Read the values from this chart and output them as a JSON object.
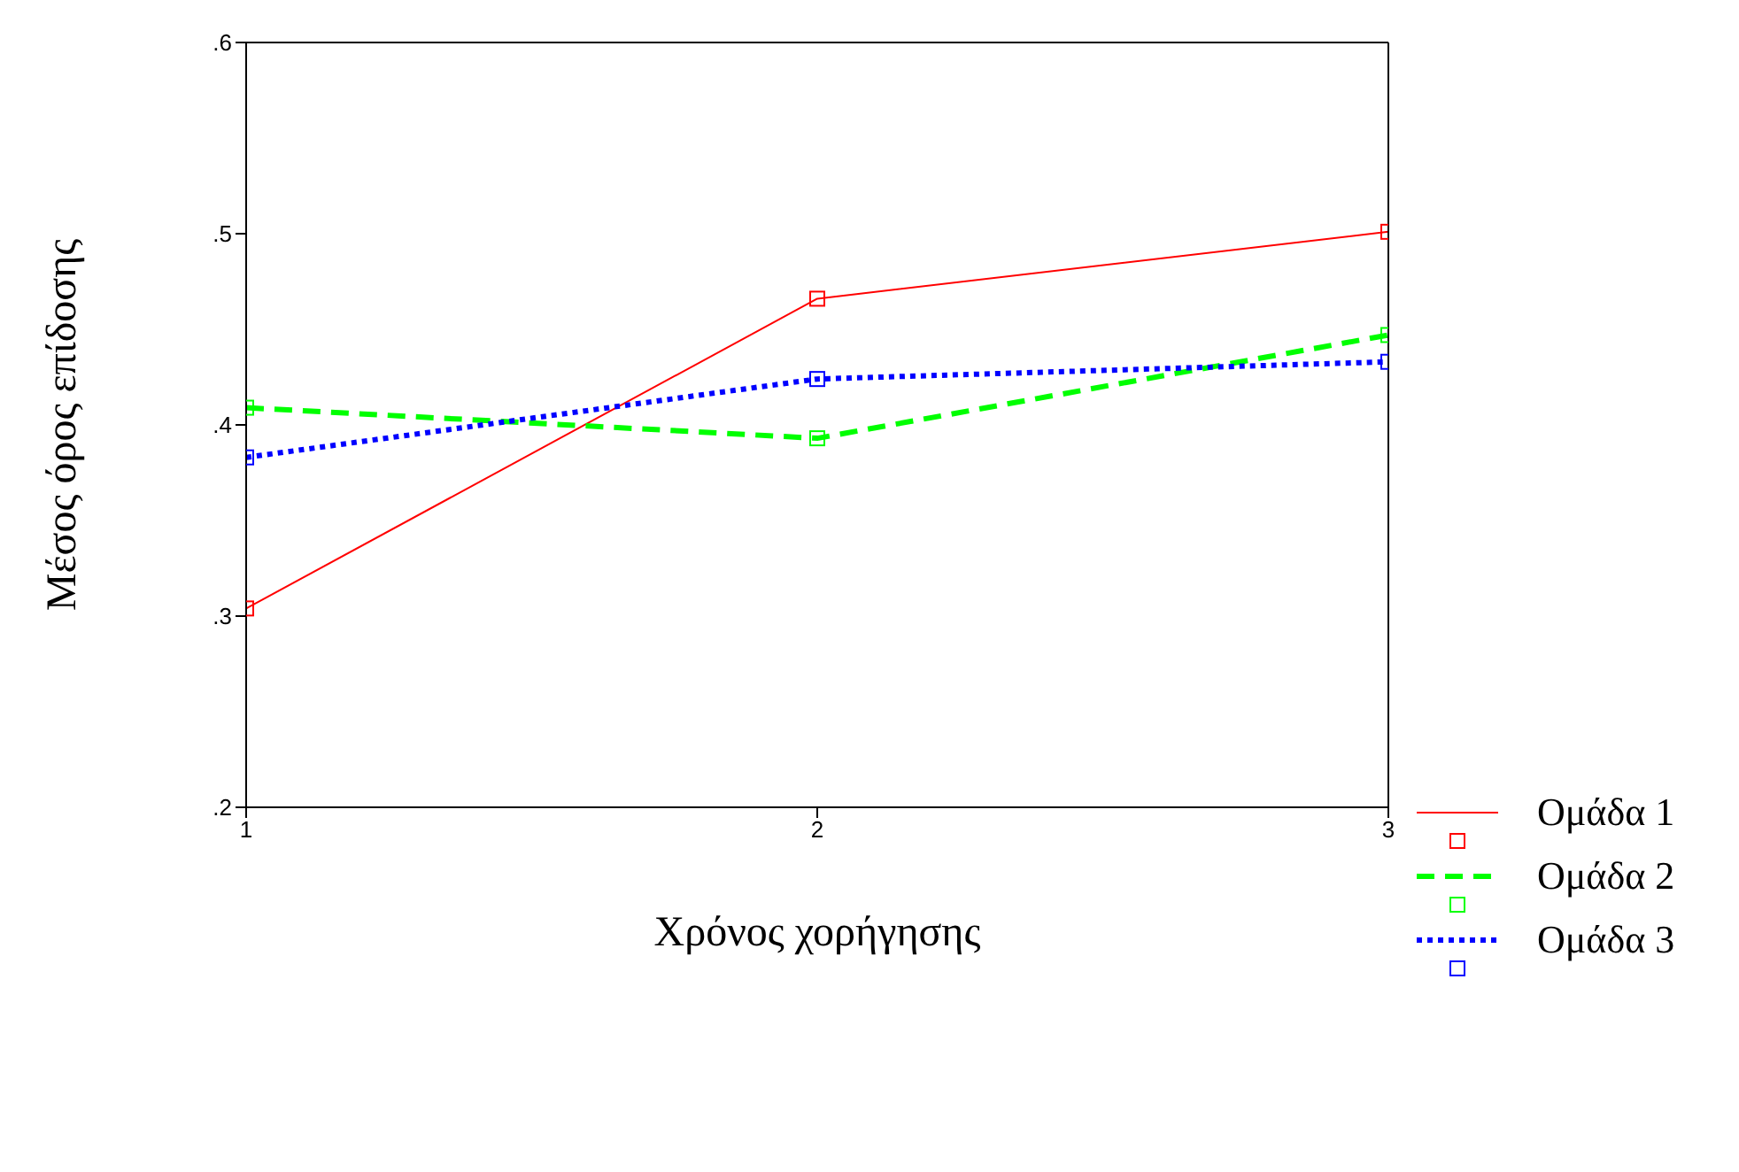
{
  "chart_data": {
    "type": "line",
    "xlabel": "Χρόνος χορήγησης",
    "ylabel": "Μέσος όρος επίδοσης",
    "x": [
      1,
      2,
      3
    ],
    "xlim": [
      1,
      3
    ],
    "xticks": [
      1,
      2,
      3
    ],
    "ylim": [
      0.2,
      0.6
    ],
    "yticks": [
      {
        "value": 0.2,
        "label": ".2"
      },
      {
        "value": 0.3,
        "label": ".3"
      },
      {
        "value": 0.4,
        "label": ".4"
      },
      {
        "value": 0.5,
        "label": ".5"
      },
      {
        "value": 0.6,
        "label": ".6"
      }
    ],
    "legend": "right",
    "marker": "square",
    "grid": false,
    "series": [
      {
        "name": "Ομάδα 1",
        "color": "#ff0000",
        "line_style": "solid",
        "values": [
          0.304,
          0.466,
          0.501
        ]
      },
      {
        "name": "Ομάδα 2",
        "color": "#00ff00",
        "line_style": "dashed",
        "values": [
          0.409,
          0.393,
          0.447
        ]
      },
      {
        "name": "Ομάδα 3",
        "color": "#0000ff",
        "line_style": "dotted",
        "values": [
          0.383,
          0.424,
          0.433
        ]
      }
    ]
  }
}
